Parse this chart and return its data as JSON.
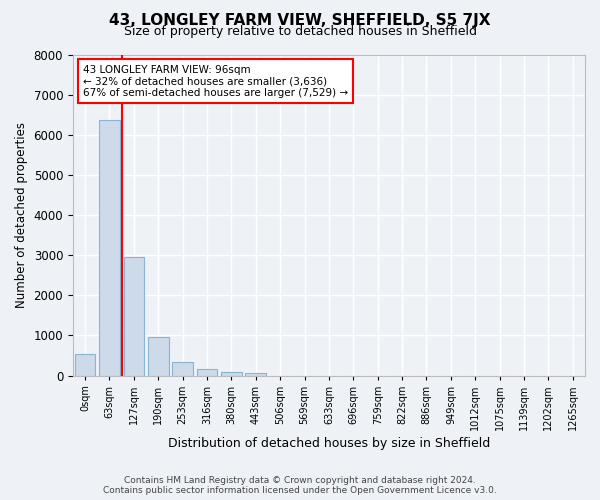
{
  "title": "43, LONGLEY FARM VIEW, SHEFFIELD, S5 7JX",
  "subtitle": "Size of property relative to detached houses in Sheffield",
  "xlabel": "Distribution of detached houses by size in Sheffield",
  "ylabel": "Number of detached properties",
  "categories": [
    "0sqm",
    "63sqm",
    "127sqm",
    "190sqm",
    "253sqm",
    "316sqm",
    "380sqm",
    "443sqm",
    "506sqm",
    "569sqm",
    "633sqm",
    "696sqm",
    "759sqm",
    "822sqm",
    "886sqm",
    "949sqm",
    "1012sqm",
    "1075sqm",
    "1139sqm",
    "1202sqm",
    "1265sqm"
  ],
  "bar_values": [
    530,
    6380,
    2960,
    960,
    330,
    155,
    100,
    65,
    0,
    0,
    0,
    0,
    0,
    0,
    0,
    0,
    0,
    0,
    0,
    0,
    0
  ],
  "bar_color": "#ccdaea",
  "bar_edge_color": "#8ab4d4",
  "ylim": [
    0,
    8000
  ],
  "yticks": [
    0,
    1000,
    2000,
    3000,
    4000,
    5000,
    6000,
    7000,
    8000
  ],
  "property_label": "43 LONGLEY FARM VIEW: 96sqm",
  "pct_smaller": "32%",
  "n_smaller": "3,636",
  "pct_larger": "67%",
  "n_larger": "7,529",
  "background_color": "#eef2f7",
  "grid_color": "#ffffff",
  "footer1": "Contains HM Land Registry data © Crown copyright and database right 2024.",
  "footer2": "Contains public sector information licensed under the Open Government Licence v3.0."
}
